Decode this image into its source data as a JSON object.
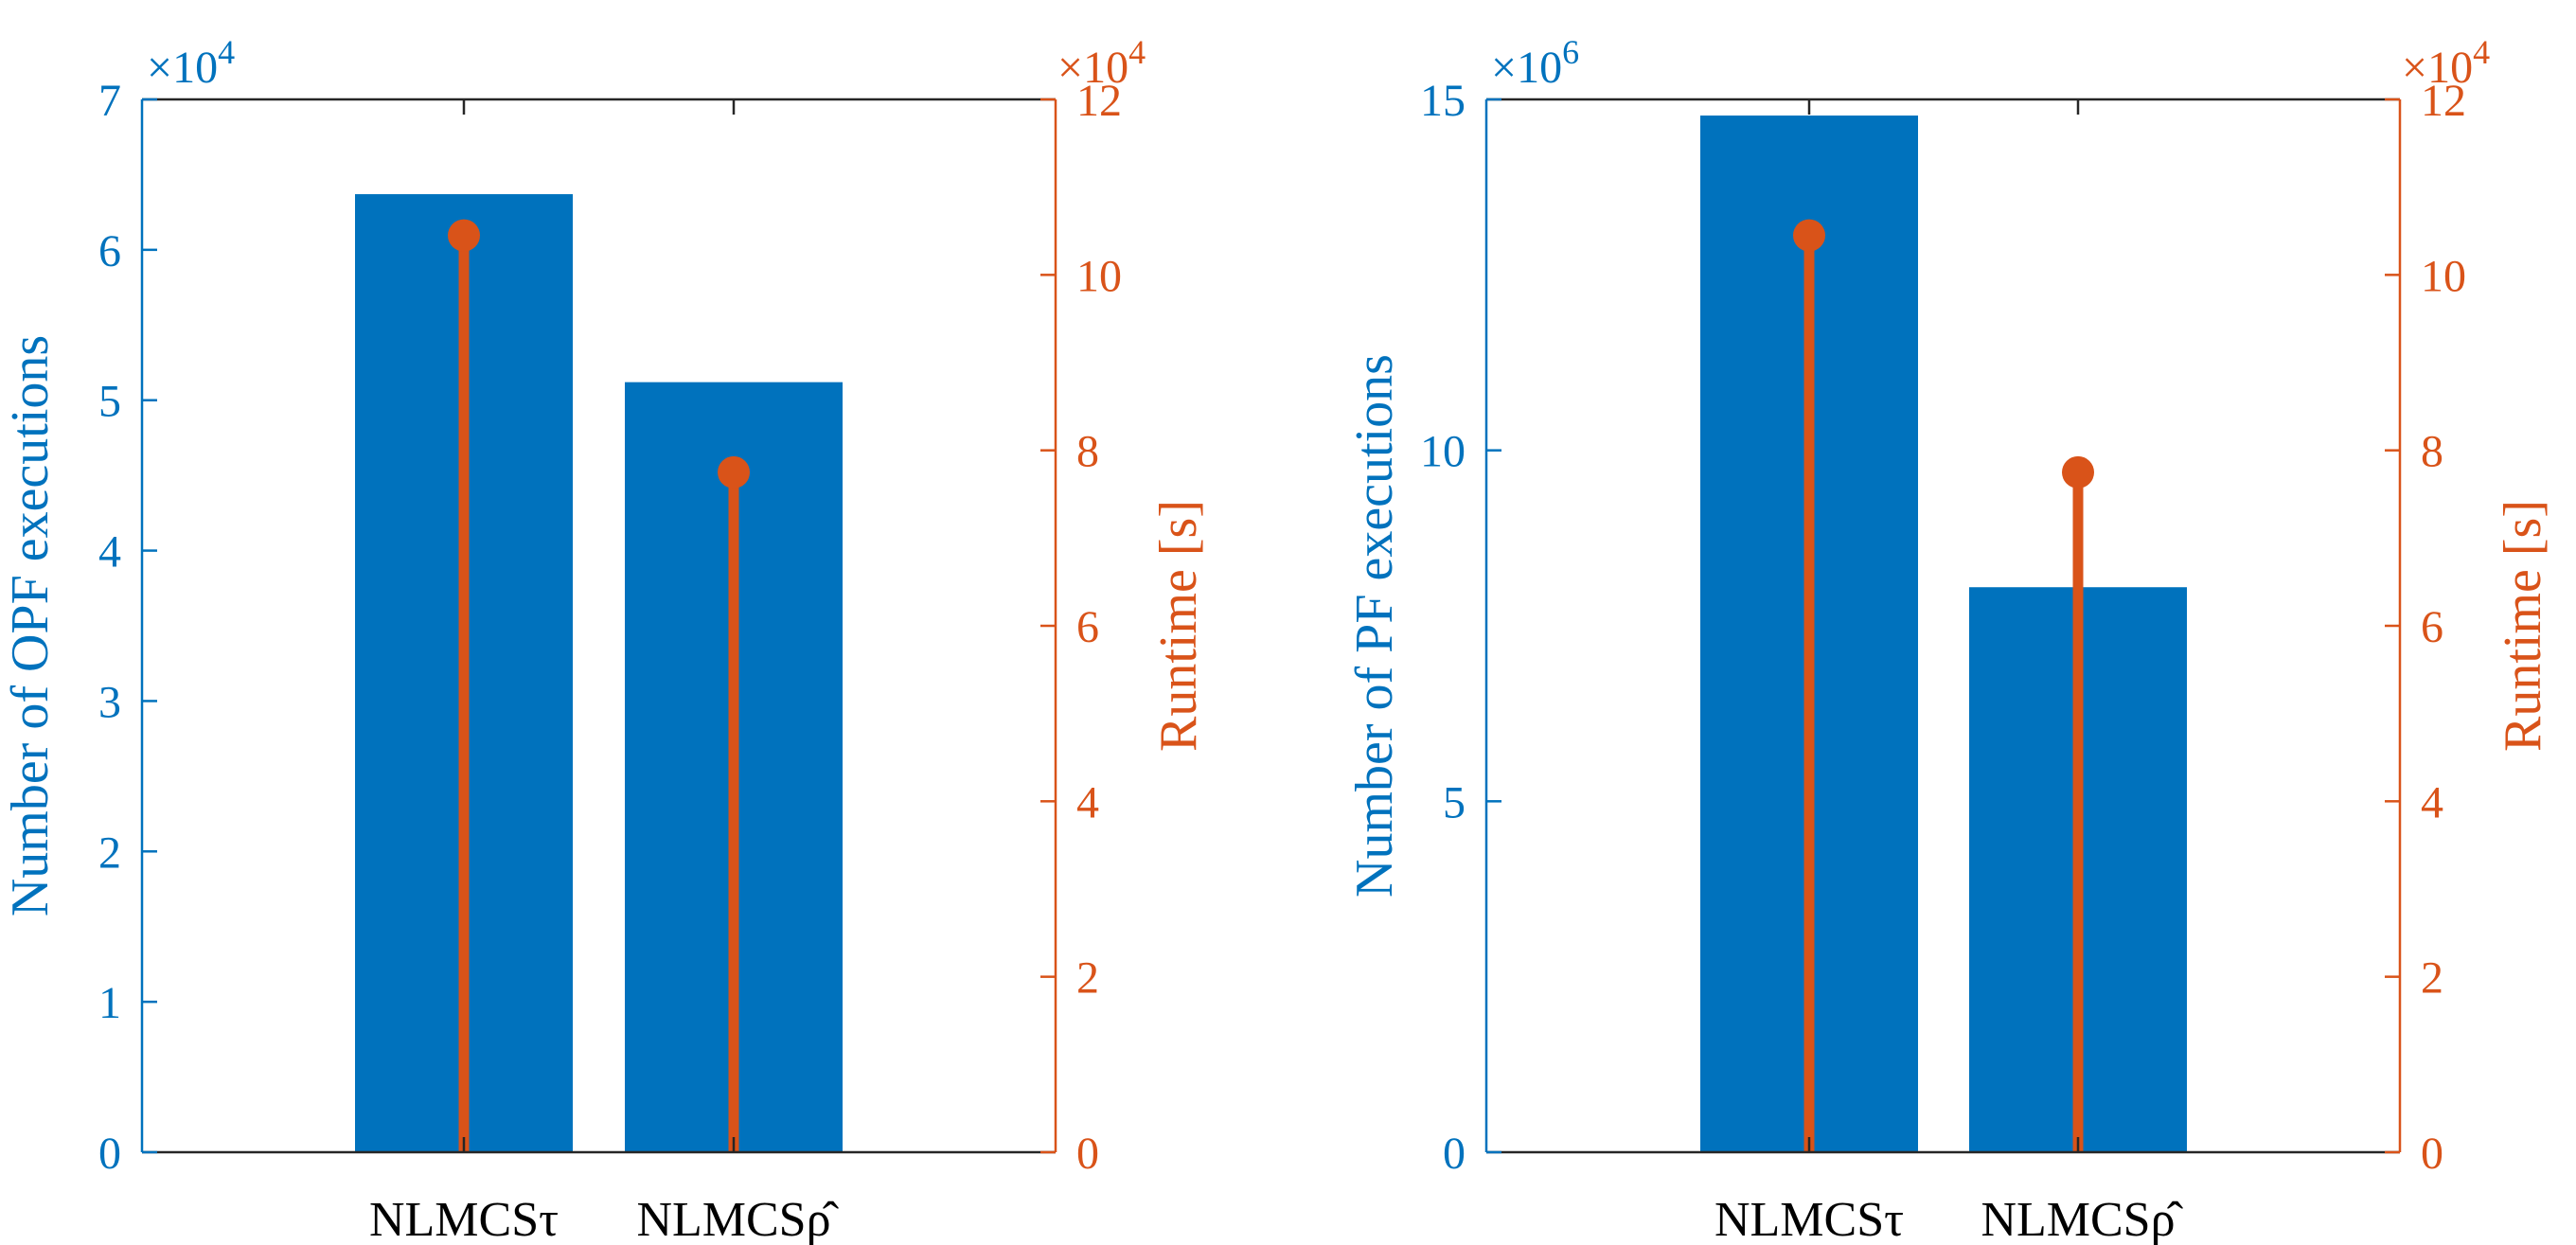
{
  "colors": {
    "left_axis": "#0072BD",
    "right_axis": "#D95319",
    "frame": "#262626",
    "background": "#FFFFFF"
  },
  "chart_data": [
    {
      "type": "bar",
      "overlay": "stem",
      "categories": [
        "NLMCSτ",
        "NLMCSρ̂"
      ],
      "left_axis": {
        "label": "Number of OPF executions",
        "ylim": [
          0,
          7
        ],
        "ticks": [
          0,
          1,
          2,
          3,
          4,
          5,
          6,
          7
        ],
        "tick_labels": [
          "0",
          "1",
          "2",
          "3",
          "4",
          "5",
          "6",
          "7"
        ],
        "exponent": "4"
      },
      "right_axis": {
        "label": "Runtime [s]",
        "ylim": [
          0,
          12
        ],
        "ticks": [
          0,
          2,
          4,
          6,
          8,
          10,
          12
        ],
        "tick_labels": [
          "0",
          "2",
          "4",
          "6",
          "8",
          "10",
          "12"
        ],
        "exponent": "4"
      },
      "series": [
        {
          "name": "Number of OPF executions",
          "kind": "bar",
          "axis": "left",
          "values": [
            6.37,
            5.12
          ]
        },
        {
          "name": "Runtime [s]",
          "kind": "stem",
          "axis": "right",
          "values": [
            10.45,
            7.75
          ]
        }
      ]
    },
    {
      "type": "bar",
      "overlay": "stem",
      "categories": [
        "NLMCSτ",
        "NLMCSρ̂"
      ],
      "left_axis": {
        "label": "Number of PF executions",
        "ylim": [
          0,
          15
        ],
        "ticks": [
          0,
          5,
          10,
          15
        ],
        "tick_labels": [
          "0",
          "5",
          "10",
          "15"
        ],
        "exponent": "6"
      },
      "right_axis": {
        "label": "Runtime [s]",
        "ylim": [
          0,
          12
        ],
        "ticks": [
          0,
          2,
          4,
          6,
          8,
          10,
          12
        ],
        "tick_labels": [
          "0",
          "2",
          "4",
          "6",
          "8",
          "10",
          "12"
        ],
        "exponent": "4"
      },
      "series": [
        {
          "name": "Number of PF executions",
          "kind": "bar",
          "axis": "left",
          "values": [
            14.77,
            8.05
          ]
        },
        {
          "name": "Runtime [s]",
          "kind": "stem",
          "axis": "right",
          "values": [
            10.45,
            7.75
          ]
        }
      ]
    }
  ]
}
